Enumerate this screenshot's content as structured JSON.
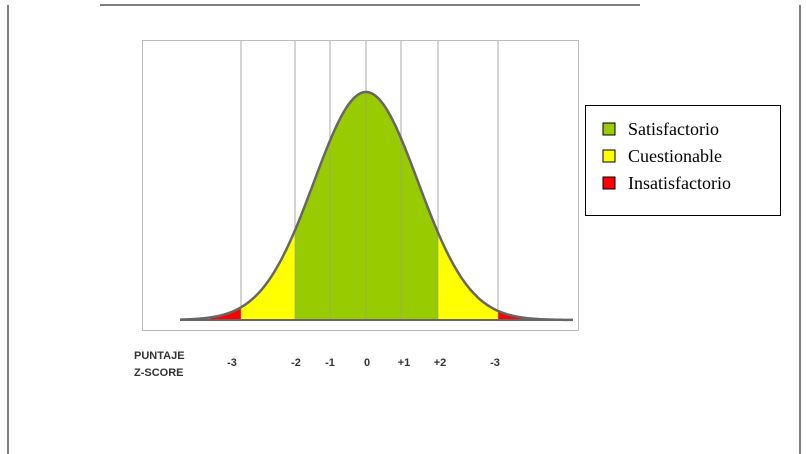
{
  "axis_label": {
    "line1": "PUNTAJE",
    "line2": "Z-SCORE"
  },
  "ticks": [
    "-3",
    "-2",
    "-1",
    "0",
    "+1",
    "+2",
    "-3"
  ],
  "legend": [
    "Satisfactorio",
    "Cuestionable",
    "Insatisfactorio"
  ]
}
